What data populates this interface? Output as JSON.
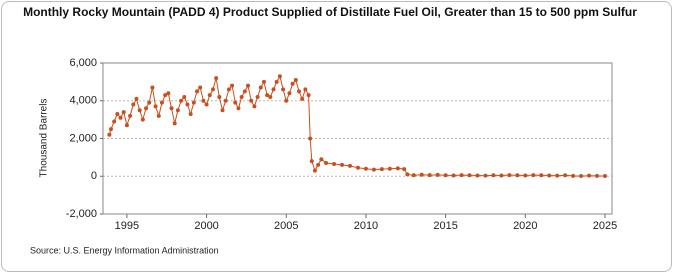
{
  "chart_data": {
    "type": "line",
    "title": "Monthly Rocky Mountain (PADD 4) Product Supplied of Distillate Fuel Oil, Greater than 15 to 500 ppm Sulfur",
    "y_label": "Thousand Barrels",
    "source": "Source: U.S. Energy Information Administration",
    "color": "#c8501e",
    "grid": true,
    "x": [
      1993.9,
      1994.0,
      1994.2,
      1994.4,
      1994.6,
      1994.8,
      1995.0,
      1995.2,
      1995.4,
      1995.6,
      1995.8,
      1996.0,
      1996.2,
      1996.4,
      1996.6,
      1996.8,
      1997.0,
      1997.2,
      1997.4,
      1997.6,
      1997.8,
      1998.0,
      1998.2,
      1998.4,
      1998.6,
      1998.8,
      1999.0,
      1999.2,
      1999.4,
      1999.6,
      1999.8,
      2000.0,
      2000.2,
      2000.4,
      2000.6,
      2000.8,
      2001.0,
      2001.2,
      2001.4,
      2001.6,
      2001.8,
      2002.0,
      2002.2,
      2002.4,
      2002.6,
      2002.8,
      2003.0,
      2003.2,
      2003.4,
      2003.6,
      2003.8,
      2004.0,
      2004.2,
      2004.4,
      2004.6,
      2004.8,
      2005.0,
      2005.2,
      2005.4,
      2005.6,
      2005.8,
      2006.0,
      2006.2,
      2006.4,
      2006.5,
      2006.6,
      2006.8,
      2007.0,
      2007.2,
      2007.5,
      2008.0,
      2008.5,
      2009.0,
      2009.5,
      2010.0,
      2010.5,
      2011.0,
      2011.5,
      2012.0,
      2012.4,
      2012.6,
      2013.0,
      2013.5,
      2014.0,
      2014.5,
      2015.0,
      2015.5,
      2016.0,
      2016.5,
      2017.0,
      2017.5,
      2018.0,
      2018.5,
      2019.0,
      2019.5,
      2020.0,
      2020.5,
      2021.0,
      2021.5,
      2022.0,
      2022.5,
      2023.0,
      2023.5,
      2024.0,
      2024.5,
      2025.0
    ],
    "values": [
      2200,
      2500,
      2900,
      3300,
      3100,
      3400,
      2700,
      3200,
      3800,
      4100,
      3500,
      3000,
      3600,
      3900,
      4700,
      3700,
      3200,
      3900,
      4300,
      4400,
      3600,
      2800,
      3500,
      4000,
      4200,
      3800,
      3300,
      3900,
      4500,
      4700,
      4000,
      3800,
      4300,
      4600,
      5200,
      4200,
      3500,
      4000,
      4600,
      4800,
      3900,
      3600,
      4200,
      4500,
      4800,
      4000,
      3700,
      4200,
      4700,
      5000,
      4300,
      4200,
      4600,
      5000,
      5300,
      4600,
      4000,
      4400,
      4900,
      5100,
      4500,
      4100,
      4600,
      4300,
      2000,
      800,
      300,
      600,
      900,
      700,
      650,
      600,
      550,
      450,
      400,
      350,
      380,
      400,
      420,
      380,
      100,
      50,
      80,
      60,
      70,
      50,
      40,
      60,
      50,
      40,
      30,
      50,
      40,
      60,
      50,
      40,
      60,
      50,
      40,
      30,
      50,
      20,
      10,
      30,
      20,
      10
    ],
    "xlim": [
      1993.5,
      2025.44
    ],
    "xticks": [
      1995,
      2000,
      2005,
      2010,
      2015,
      2020,
      2025
    ],
    "ylim": [
      -2000,
      6000
    ],
    "yticks": [
      {
        "value": -2000,
        "label": "-2,000"
      },
      0,
      {
        "value": 2000,
        "label": "2,000"
      },
      {
        "value": 4000,
        "label": "4,000"
      },
      {
        "value": 6000,
        "label": "6,000"
      }
    ]
  }
}
